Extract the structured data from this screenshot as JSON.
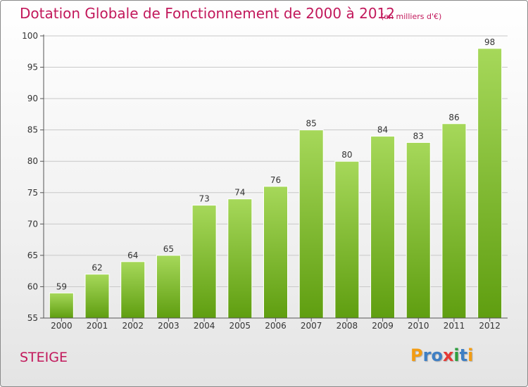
{
  "title": "Dotation Globale de Fonctionnement de 2000 à 2012",
  "subtitle": "(en milliers d'€)",
  "commune": "STEIGE",
  "brand": {
    "letters": [
      "P",
      "r",
      "o",
      "x",
      "i",
      "t",
      "i"
    ],
    "colors": [
      "#f39c12",
      "#3f7fc4",
      "#3f7fc4",
      "#e53935",
      "#2e9e3f",
      "#3f7fc4",
      "#f39c12"
    ]
  },
  "colors": {
    "title": "#c2185b",
    "bar_light": "#a6d85a",
    "bar_dark": "#5f9e10",
    "axis": "#555555",
    "grid": "#c8c8c8"
  },
  "chart_data": {
    "type": "bar",
    "categories": [
      "2000",
      "2001",
      "2002",
      "2003",
      "2004",
      "2005",
      "2006",
      "2007",
      "2008",
      "2009",
      "2010",
      "2011",
      "2012"
    ],
    "values": [
      59,
      62,
      64,
      65,
      73,
      74,
      76,
      85,
      80,
      84,
      83,
      86,
      98
    ],
    "data_labels": [
      "59",
      "62",
      "64",
      "65",
      "73",
      "74",
      "76",
      "85",
      "80",
      "84",
      "83",
      "86",
      "98"
    ],
    "ylim": [
      55,
      100
    ],
    "yticks": [
      55,
      60,
      65,
      70,
      75,
      80,
      85,
      90,
      95,
      100
    ],
    "ytick_labels": [
      "55",
      "60",
      "65",
      "70",
      "75",
      "80",
      "85",
      "90",
      "95",
      "100"
    ],
    "grid": true,
    "legend": "none"
  }
}
